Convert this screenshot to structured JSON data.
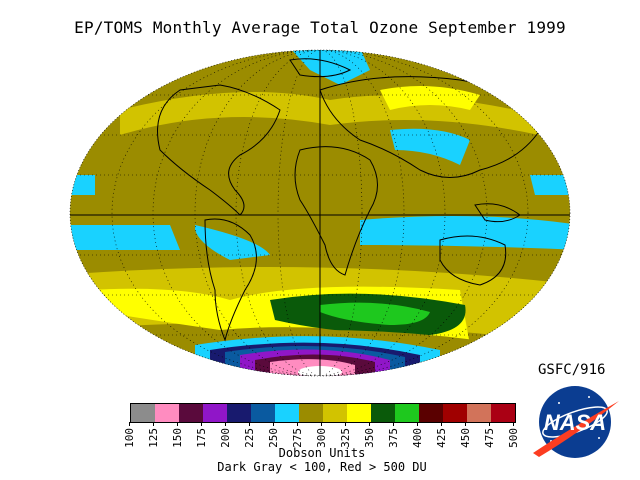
{
  "title": "EP/TOMS Monthly Average Total Ozone September 1999",
  "credit": "GSFC/916",
  "legend": {
    "units_label": "Dobson Units",
    "note": "Dark Gray < 100, Red > 500 DU",
    "ticks": [
      "100",
      "125",
      "150",
      "175",
      "200",
      "225",
      "250",
      "275",
      "300",
      "325",
      "350",
      "375",
      "400",
      "425",
      "450",
      "475",
      "500"
    ],
    "colors": [
      "#8c8c8c",
      "#ff8cc0",
      "#5a0a3c",
      "#9016c8",
      "#181a6e",
      "#0a5aa0",
      "#19d2ff",
      "#9b8c00",
      "#d2c300",
      "#ffff00",
      "#0a5a0a",
      "#1ec81e",
      "#5a0000",
      "#a00000",
      "#d2735a",
      "#aa0014"
    ]
  },
  "logo_text": "NASA",
  "map_colors": {
    "olive": "#9b8c00",
    "yellow_green": "#d2c300",
    "yellow": "#ffff00",
    "cyan": "#19d2ff",
    "dark_green": "#0a5a0a",
    "green": "#1ec81e",
    "navy": "#181a6e",
    "blue": "#0a5aa0",
    "purple": "#9016c8",
    "pink": "#ff8cc0"
  }
}
